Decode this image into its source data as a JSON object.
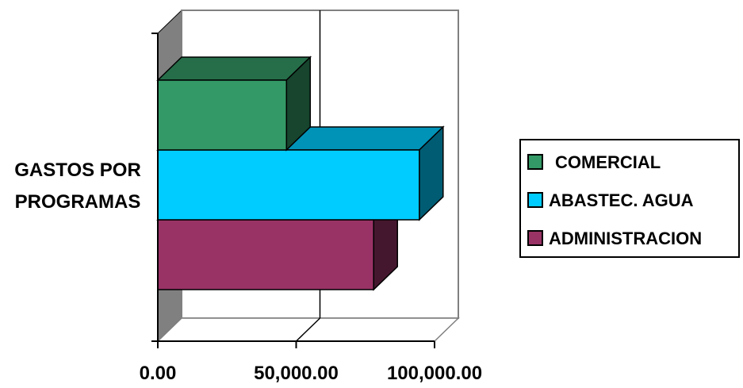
{
  "chart_data": {
    "type": "bar",
    "orientation": "horizontal",
    "three_d": true,
    "category_label_lines": [
      "GASTOS POR",
      "PROGRAMAS"
    ],
    "categories": [
      "GASTOS POR PROGRAMAS"
    ],
    "series": [
      {
        "name": "COMERCIAL",
        "values": [
          46500
        ],
        "color": "#339966"
      },
      {
        "name": "ABASTEC. AGUA",
        "values": [
          94500
        ],
        "color": "#00CCFF"
      },
      {
        "name": "ADMINISTRACION",
        "values": [
          78000
        ],
        "color": "#993366"
      }
    ],
    "xlim": [
      0,
      100000
    ],
    "x_ticks": [
      "0.00",
      "50,000.00",
      "100,000.00"
    ],
    "grid": "vertical-major",
    "legend_position": "right",
    "wall_color": "#808080"
  }
}
